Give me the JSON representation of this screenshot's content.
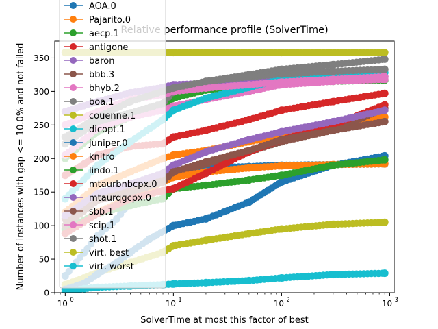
{
  "chart_data": {
    "type": "line",
    "title": "Relative performance profile (SolverTime)",
    "xlabel": "SolverTime at most this factor of best",
    "ylabel": "Number of instances with gap <= 10.0% and not failed",
    "xscale": "log",
    "xlim": [
      0.8,
      1100
    ],
    "ylim": [
      0,
      375
    ],
    "x_ticks": [
      1,
      10,
      100,
      1000
    ],
    "x_tick_labels": [
      "10^0",
      "10^1",
      "10^2",
      "10^3"
    ],
    "y_ticks": [
      0,
      50,
      100,
      150,
      200,
      250,
      300,
      350
    ],
    "grid": false,
    "legend_position": "upper-left",
    "series": [
      {
        "name": "AOA.0",
        "color": "#1f77b4",
        "points": [
          [
            1,
            25
          ],
          [
            1.5,
            60
          ],
          [
            2,
            85
          ],
          [
            3,
            110
          ],
          [
            4,
            135
          ],
          [
            6,
            160
          ],
          [
            8,
            175
          ],
          [
            10,
            182
          ],
          [
            20,
            186
          ],
          [
            50,
            188
          ],
          [
            100,
            190
          ],
          [
            900,
            192
          ]
        ]
      },
      {
        "name": "Pajarito.0",
        "color": "#ff7f0e",
        "points": [
          [
            1,
            120
          ],
          [
            2,
            160
          ],
          [
            4,
            180
          ],
          [
            8,
            200
          ],
          [
            10,
            205
          ],
          [
            20,
            212
          ],
          [
            50,
            225
          ],
          [
            100,
            235
          ],
          [
            300,
            248
          ],
          [
            900,
            262
          ]
        ]
      },
      {
        "name": "aecp.1",
        "color": "#2ca02c",
        "points": [
          [
            1,
            200
          ],
          [
            2,
            240
          ],
          [
            4,
            262
          ],
          [
            8,
            280
          ],
          [
            10,
            290
          ],
          [
            20,
            302
          ],
          [
            50,
            308
          ],
          [
            100,
            312
          ],
          [
            300,
            315
          ],
          [
            900,
            317
          ]
        ]
      },
      {
        "name": "antigone",
        "color": "#d62728",
        "points": [
          [
            1,
            175
          ],
          [
            1.5,
            192
          ],
          [
            2,
            205
          ],
          [
            4,
            218
          ],
          [
            8,
            222
          ],
          [
            10,
            232
          ],
          [
            20,
            242
          ],
          [
            50,
            258
          ],
          [
            100,
            272
          ],
          [
            300,
            285
          ],
          [
            900,
            297
          ]
        ]
      },
      {
        "name": "baron",
        "color": "#9467bd",
        "points": [
          [
            1,
            270
          ],
          [
            2,
            285
          ],
          [
            4,
            298
          ],
          [
            8,
            306
          ],
          [
            10,
            310
          ],
          [
            20,
            312
          ],
          [
            50,
            315
          ],
          [
            100,
            318
          ],
          [
            300,
            320
          ],
          [
            900,
            322
          ]
        ]
      },
      {
        "name": "bbb.3",
        "color": "#8c564b",
        "points": [
          [
            1,
            110
          ],
          [
            2,
            140
          ],
          [
            4,
            158
          ],
          [
            8,
            170
          ],
          [
            10,
            178
          ],
          [
            20,
            192
          ],
          [
            50,
            210
          ],
          [
            100,
            225
          ],
          [
            300,
            242
          ],
          [
            900,
            275
          ]
        ]
      },
      {
        "name": "bhyb.2",
        "color": "#e377c2",
        "points": [
          [
            1,
            205
          ],
          [
            2,
            245
          ],
          [
            4,
            262
          ],
          [
            8,
            272
          ],
          [
            10,
            278
          ],
          [
            20,
            288
          ],
          [
            50,
            300
          ],
          [
            100,
            310
          ],
          [
            300,
            315
          ],
          [
            900,
            318
          ]
        ]
      },
      {
        "name": "boa.1",
        "color": "#7f7f7f",
        "points": [
          [
            1,
            222
          ],
          [
            2,
            255
          ],
          [
            4,
            268
          ],
          [
            8,
            282
          ],
          [
            10,
            300
          ],
          [
            20,
            315
          ],
          [
            50,
            325
          ],
          [
            100,
            333
          ],
          [
            300,
            340
          ],
          [
            900,
            348
          ]
        ]
      },
      {
        "name": "couenne.1",
        "color": "#bcbd22",
        "points": [
          [
            1,
            12
          ],
          [
            2,
            30
          ],
          [
            4,
            45
          ],
          [
            8,
            60
          ],
          [
            10,
            70
          ],
          [
            20,
            78
          ],
          [
            50,
            88
          ],
          [
            100,
            95
          ],
          [
            300,
            102
          ],
          [
            900,
            105
          ]
        ]
      },
      {
        "name": "dicopt.1",
        "color": "#17becf",
        "points": [
          [
            1,
            140
          ],
          [
            2,
            190
          ],
          [
            4,
            225
          ],
          [
            8,
            258
          ],
          [
            10,
            272
          ],
          [
            20,
            290
          ],
          [
            50,
            306
          ],
          [
            100,
            318
          ],
          [
            300,
            324
          ],
          [
            900,
            328
          ]
        ]
      },
      {
        "name": "juniper.0",
        "color": "#1f77b4",
        "points": [
          [
            1,
            5
          ],
          [
            1.5,
            14
          ],
          [
            2,
            28
          ],
          [
            3,
            45
          ],
          [
            4,
            60
          ],
          [
            6,
            80
          ],
          [
            10,
            100
          ],
          [
            20,
            110
          ],
          [
            50,
            135
          ],
          [
            100,
            165
          ],
          [
            300,
            190
          ],
          [
            900,
            204
          ]
        ]
      },
      {
        "name": "knitro",
        "color": "#ff7f0e",
        "points": [
          [
            1,
            88
          ],
          [
            2,
            120
          ],
          [
            4,
            142
          ],
          [
            8,
            165
          ],
          [
            10,
            172
          ],
          [
            20,
            180
          ],
          [
            50,
            186
          ],
          [
            100,
            189
          ],
          [
            300,
            191
          ],
          [
            900,
            192
          ]
        ]
      },
      {
        "name": "lindo.1",
        "color": "#2ca02c",
        "points": [
          [
            1,
            95
          ],
          [
            2,
            118
          ],
          [
            4,
            130
          ],
          [
            8,
            140
          ],
          [
            10,
            155
          ],
          [
            20,
            160
          ],
          [
            50,
            168
          ],
          [
            100,
            175
          ],
          [
            300,
            190
          ],
          [
            900,
            198
          ]
        ]
      },
      {
        "name": "mtaurbnbcpx.0",
        "color": "#d62728",
        "points": [
          [
            1,
            88
          ],
          [
            2,
            118
          ],
          [
            4,
            140
          ],
          [
            8,
            152
          ],
          [
            10,
            155
          ],
          [
            20,
            178
          ],
          [
            50,
            210
          ],
          [
            100,
            228
          ],
          [
            300,
            250
          ],
          [
            900,
            280
          ]
        ]
      },
      {
        "name": "mtaurqgcpx.0",
        "color": "#9467bd",
        "points": [
          [
            1,
            115
          ],
          [
            2,
            148
          ],
          [
            4,
            162
          ],
          [
            8,
            178
          ],
          [
            10,
            190
          ],
          [
            20,
            210
          ],
          [
            50,
            228
          ],
          [
            100,
            240
          ],
          [
            300,
            255
          ],
          [
            900,
            272
          ]
        ]
      },
      {
        "name": "sbb.1",
        "color": "#8c564b",
        "points": [
          [
            1,
            100
          ],
          [
            2,
            138
          ],
          [
            4,
            150
          ],
          [
            8,
            165
          ],
          [
            10,
            180
          ],
          [
            20,
            195
          ],
          [
            50,
            212
          ],
          [
            100,
            228
          ],
          [
            300,
            242
          ],
          [
            900,
            255
          ]
        ]
      },
      {
        "name": "scip.1",
        "color": "#e377c2",
        "points": [
          [
            1,
            250
          ],
          [
            2,
            270
          ],
          [
            4,
            288
          ],
          [
            8,
            295
          ],
          [
            10,
            300
          ],
          [
            20,
            305
          ],
          [
            50,
            310
          ],
          [
            100,
            314
          ],
          [
            300,
            318
          ],
          [
            900,
            322
          ]
        ]
      },
      {
        "name": "shot.1",
        "color": "#7f7f7f",
        "points": [
          [
            1,
            232
          ],
          [
            2,
            262
          ],
          [
            4,
            285
          ],
          [
            8,
            300
          ],
          [
            10,
            305
          ],
          [
            20,
            315
          ],
          [
            50,
            322
          ],
          [
            100,
            326
          ],
          [
            300,
            330
          ],
          [
            900,
            333
          ]
        ]
      },
      {
        "name": "virt. best",
        "color": "#bcbd22",
        "points": [
          [
            1,
            358
          ],
          [
            10,
            358
          ],
          [
            100,
            358
          ],
          [
            900,
            358
          ]
        ]
      },
      {
        "name": "virt. worst",
        "color": "#17becf",
        "points": [
          [
            1,
            2
          ],
          [
            1.5,
            6
          ],
          [
            2,
            8
          ],
          [
            4,
            10
          ],
          [
            8,
            12
          ],
          [
            10,
            13
          ],
          [
            20,
            15
          ],
          [
            50,
            18
          ],
          [
            100,
            22
          ],
          [
            300,
            27
          ],
          [
            900,
            29
          ]
        ]
      }
    ]
  }
}
